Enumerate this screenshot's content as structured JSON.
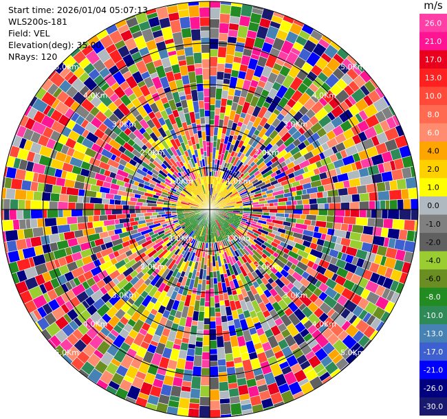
{
  "info": {
    "start_time": "Start time: 2026/01/04 05:07:13",
    "station": "WLS200s-181",
    "field": "Field: VEL",
    "elevation": "Elevation(deg): 35.00",
    "nrays": "NRays: 120"
  },
  "chart_data": {
    "type": "heatmap",
    "projection": "polar-ppi",
    "field": "VEL",
    "units": "m/s",
    "n_rays": 120,
    "elevation_deg": 35.0,
    "range_km": [
      0,
      5.0
    ],
    "range_rings_km": [
      1.0,
      2.0,
      3.0,
      4.0,
      5.0
    ],
    "ring_label_text": [
      "1.0Km",
      "2.0Km",
      "3.0Km",
      "4.0Km",
      "5.0Km"
    ],
    "grid": true,
    "colorbar": {
      "label": "m/s",
      "tick_labels": [
        "26.0",
        "21.0",
        "17.0",
        "13.0",
        "10.0",
        "8.0",
        "6.0",
        "4.0",
        "2.0",
        "1.0",
        "0.0",
        "-1.0",
        "-2.0",
        "-4.0",
        "-6.0",
        "-8.0",
        "-10.0",
        "-13.0",
        "-17.0",
        "-21.0",
        "-26.0",
        "-30.0"
      ],
      "colors": [
        "#ff3fa6",
        "#ff1493",
        "#e8001c",
        "#ff2020",
        "#ff4a3a",
        "#ff6a50",
        "#ff8c6e",
        "#ffa500",
        "#ffd000",
        "#ffff00",
        "#b0b8c0",
        "#808080",
        "#606060",
        "#9acd32",
        "#6b8e23",
        "#228b22",
        "#2e8b57",
        "#4682b4",
        "#3d5fcf",
        "#0000ff",
        "#000080",
        "#191970"
      ]
    },
    "inner_pattern": {
      "positive_sector_color": "#ffd000",
      "negative_sector_color": "#228b22",
      "inner_radius_km": 0.8
    }
  }
}
